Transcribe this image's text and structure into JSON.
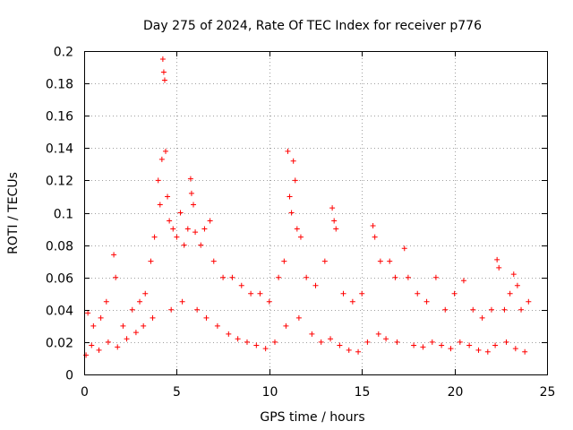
{
  "chart_data": {
    "type": "scatter",
    "title": "Day 275 of 2024, Rate Of TEC Index for receiver p776",
    "xlabel": "GPS time / hours",
    "ylabel": "ROTI / TECUs",
    "xlim": [
      0,
      25
    ],
    "ylim": [
      0,
      0.2
    ],
    "x_ticks": [
      "0",
      "5",
      "10",
      "15",
      "20",
      "25"
    ],
    "y_ticks": [
      "0",
      "0.02",
      "0.04",
      "0.06",
      "0.08",
      "0.1",
      "0.12",
      "0.14",
      "0.16",
      "0.18",
      "0.2"
    ],
    "grid": true,
    "marker": "+",
    "color": "#ff0000",
    "series": [
      {
        "name": "ROTI",
        "points": [
          [
            0.2,
            0.038
          ],
          [
            0.5,
            0.03
          ],
          [
            0.9,
            0.035
          ],
          [
            1.2,
            0.045
          ],
          [
            1.6,
            0.074
          ],
          [
            1.7,
            0.06
          ],
          [
            2.1,
            0.03
          ],
          [
            2.6,
            0.04
          ],
          [
            3.0,
            0.045
          ],
          [
            3.3,
            0.05
          ],
          [
            3.6,
            0.07
          ],
          [
            3.8,
            0.085
          ],
          [
            4.0,
            0.12
          ],
          [
            4.1,
            0.105
          ],
          [
            4.2,
            0.133
          ],
          [
            4.25,
            0.195
          ],
          [
            4.3,
            0.187
          ],
          [
            4.35,
            0.182
          ],
          [
            4.4,
            0.138
          ],
          [
            4.5,
            0.11
          ],
          [
            4.6,
            0.095
          ],
          [
            4.8,
            0.09
          ],
          [
            5.0,
            0.085
          ],
          [
            5.2,
            0.1
          ],
          [
            5.4,
            0.08
          ],
          [
            5.6,
            0.09
          ],
          [
            5.75,
            0.121
          ],
          [
            5.8,
            0.112
          ],
          [
            5.9,
            0.105
          ],
          [
            6.0,
            0.088
          ],
          [
            6.3,
            0.08
          ],
          [
            6.5,
            0.09
          ],
          [
            6.8,
            0.095
          ],
          [
            7.0,
            0.07
          ],
          [
            7.5,
            0.06
          ],
          [
            8.0,
            0.06
          ],
          [
            8.5,
            0.055
          ],
          [
            9.0,
            0.05
          ],
          [
            9.5,
            0.05
          ],
          [
            10.0,
            0.045
          ],
          [
            10.5,
            0.06
          ],
          [
            10.8,
            0.07
          ],
          [
            11.0,
            0.138
          ],
          [
            11.1,
            0.11
          ],
          [
            11.2,
            0.1
          ],
          [
            11.3,
            0.132
          ],
          [
            11.4,
            0.12
          ],
          [
            11.5,
            0.09
          ],
          [
            11.7,
            0.085
          ],
          [
            12.0,
            0.06
          ],
          [
            12.5,
            0.055
          ],
          [
            13.0,
            0.07
          ],
          [
            13.4,
            0.103
          ],
          [
            13.5,
            0.095
          ],
          [
            13.6,
            0.09
          ],
          [
            14.0,
            0.05
          ],
          [
            14.5,
            0.045
          ],
          [
            15.0,
            0.05
          ],
          [
            15.6,
            0.092
          ],
          [
            15.7,
            0.085
          ],
          [
            16.0,
            0.07
          ],
          [
            16.5,
            0.07
          ],
          [
            16.8,
            0.06
          ],
          [
            17.3,
            0.078
          ],
          [
            17.5,
            0.06
          ],
          [
            18.0,
            0.05
          ],
          [
            18.5,
            0.045
          ],
          [
            19.0,
            0.06
          ],
          [
            19.5,
            0.04
          ],
          [
            20.0,
            0.05
          ],
          [
            20.5,
            0.058
          ],
          [
            21.0,
            0.04
          ],
          [
            21.5,
            0.035
          ],
          [
            22.0,
            0.04
          ],
          [
            22.3,
            0.071
          ],
          [
            22.4,
            0.066
          ],
          [
            22.7,
            0.04
          ],
          [
            23.0,
            0.05
          ],
          [
            23.2,
            0.062
          ],
          [
            23.4,
            0.055
          ],
          [
            23.6,
            0.04
          ],
          [
            24.0,
            0.045
          ],
          [
            0.1,
            0.012
          ],
          [
            0.4,
            0.018
          ],
          [
            0.8,
            0.015
          ],
          [
            1.3,
            0.02
          ],
          [
            1.8,
            0.017
          ],
          [
            2.3,
            0.022
          ],
          [
            2.8,
            0.026
          ],
          [
            3.2,
            0.03
          ],
          [
            3.7,
            0.035
          ],
          [
            4.7,
            0.04
          ],
          [
            5.3,
            0.045
          ],
          [
            6.1,
            0.04
          ],
          [
            6.6,
            0.035
          ],
          [
            7.2,
            0.03
          ],
          [
            7.8,
            0.025
          ],
          [
            8.3,
            0.022
          ],
          [
            8.8,
            0.02
          ],
          [
            9.3,
            0.018
          ],
          [
            9.8,
            0.016
          ],
          [
            10.3,
            0.02
          ],
          [
            10.9,
            0.03
          ],
          [
            11.6,
            0.035
          ],
          [
            12.3,
            0.025
          ],
          [
            12.8,
            0.02
          ],
          [
            13.3,
            0.022
          ],
          [
            13.8,
            0.018
          ],
          [
            14.3,
            0.015
          ],
          [
            14.8,
            0.014
          ],
          [
            15.3,
            0.02
          ],
          [
            15.9,
            0.025
          ],
          [
            16.3,
            0.022
          ],
          [
            16.9,
            0.02
          ],
          [
            17.8,
            0.018
          ],
          [
            18.3,
            0.017
          ],
          [
            18.8,
            0.02
          ],
          [
            19.3,
            0.018
          ],
          [
            19.8,
            0.016
          ],
          [
            20.3,
            0.02
          ],
          [
            20.8,
            0.018
          ],
          [
            21.3,
            0.015
          ],
          [
            21.8,
            0.014
          ],
          [
            22.2,
            0.018
          ],
          [
            22.8,
            0.02
          ],
          [
            23.3,
            0.016
          ],
          [
            23.8,
            0.014
          ]
        ]
      }
    ]
  }
}
